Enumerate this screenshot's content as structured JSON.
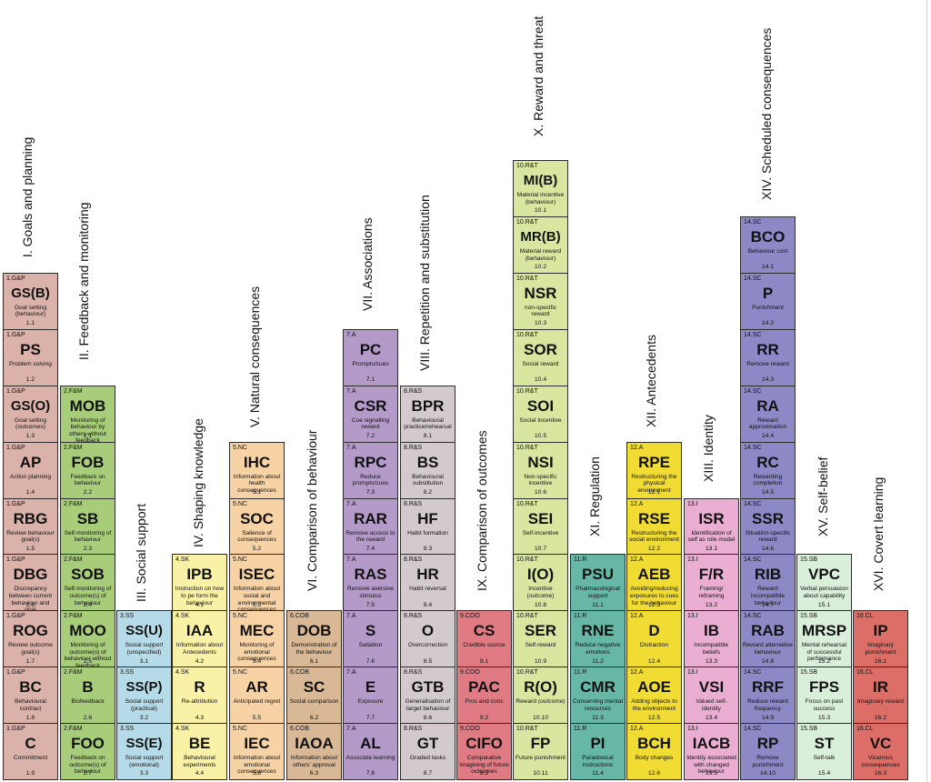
{
  "colors": {
    "goals": "#dbb2aa",
    "feedback": "#a7cd7a",
    "social": "#b6dbe8",
    "knowledge": "#f8f1a6",
    "natural": "#f7d2a4",
    "comparison": "#d9b895",
    "associations": "#b49ac8",
    "repetition": "#d3cacd",
    "outcomes": "#e07b83",
    "reward": "#d9e6a0",
    "regulation": "#66b7a6",
    "antecedents": "#f1dc34",
    "identity": "#eaaed2",
    "scheduled": "#8d89c6",
    "selfbelief": "#d9efd9",
    "covert": "#dd6e67"
  },
  "groups": [
    {
      "heading": "I. Goals and planning",
      "color_key": "goals",
      "items": [
        {
          "code": "1.G&P",
          "abbr": "GS(B)",
          "desc": "Goal setting (behaviour)",
          "num": "1.1"
        },
        {
          "code": "1.G&P",
          "abbr": "PS",
          "desc": "Problem solving",
          "num": "1.2"
        },
        {
          "code": "1.G&P",
          "abbr": "GS(O)",
          "desc": "Goal setting (outcomes)",
          "num": "1.3"
        },
        {
          "code": "1.G&P",
          "abbr": "AP",
          "desc": "Action planning",
          "num": "1.4"
        },
        {
          "code": "1.G&P",
          "abbr": "RBG",
          "desc": "Review behaviour goal(s)",
          "num": "1.5"
        },
        {
          "code": "1.G&P",
          "abbr": "DBG",
          "desc": "Discrepancy between current behaviour and goal",
          "num": "1.6"
        },
        {
          "code": "1.G&P",
          "abbr": "ROG",
          "desc": "Review outcome goal(s)",
          "num": "1.7"
        },
        {
          "code": "1.G&P",
          "abbr": "BC",
          "desc": "Behavioural contract",
          "num": "1.8"
        },
        {
          "code": "1.G&P",
          "abbr": "C",
          "desc": "Commitment",
          "num": "1.9"
        }
      ]
    },
    {
      "heading": "II. Feedback and monitoring",
      "color_key": "feedback",
      "items": [
        {
          "code": "2.F&M",
          "abbr": "MOB",
          "desc": "Monitoring of behaviour by others without feedback",
          "num": "2.1"
        },
        {
          "code": "2.F&M",
          "abbr": "FOB",
          "desc": "Feedback on behaviour",
          "num": "2.2"
        },
        {
          "code": "2.F&M",
          "abbr": "SB",
          "desc": "Self-monitoring of behaviour",
          "num": "2.3"
        },
        {
          "code": "2.F&M",
          "abbr": "SOB",
          "desc": "Self-monitoring of outcome(s) of behaviour",
          "num": "2.4"
        },
        {
          "code": "2.F&M",
          "abbr": "MOO",
          "desc": "Monitoring of outcome(s) of behaviour without feedback",
          "num": "2.5"
        },
        {
          "code": "2.F&M",
          "abbr": "B",
          "desc": "Biofeedback",
          "num": "2.6"
        },
        {
          "code": "2.F&M",
          "abbr": "FOO",
          "desc": "Feedback on outcome(s) of behaviour",
          "num": "2.7"
        }
      ]
    },
    {
      "heading": "III. Social support",
      "color_key": "social",
      "items": [
        {
          "code": "3.SS",
          "abbr": "SS(U)",
          "desc": "Social support (unspecified)",
          "num": "3.1"
        },
        {
          "code": "3.SS",
          "abbr": "SS(P)",
          "desc": "Social support (practical)",
          "num": "3.2"
        },
        {
          "code": "3.SS",
          "abbr": "SS(E)",
          "desc": "Social support (emotional)",
          "num": "3.3"
        }
      ]
    },
    {
      "heading": "IV. Shaping knowledge",
      "color_key": "knowledge",
      "items": [
        {
          "code": "4.SK",
          "abbr": "IPB",
          "desc": "Instruction on how to pe form the behaviour",
          "num": "4.1"
        },
        {
          "code": "4.SK",
          "abbr": "IAA",
          "desc": "Information about Antecedents",
          "num": "4.2"
        },
        {
          "code": "4.SK",
          "abbr": "R",
          "desc": "Re-attribution",
          "num": "4.3"
        },
        {
          "code": "4.SK",
          "abbr": "BE",
          "desc": "Behavioural experiments",
          "num": "4.4"
        }
      ]
    },
    {
      "heading": "V. Natural consequences",
      "color_key": "natural",
      "items": [
        {
          "code": "5.NC",
          "abbr": "IHC",
          "desc": "Information about health consequences",
          "num": "5.1"
        },
        {
          "code": "5.NC",
          "abbr": "SOC",
          "desc": "Salience of consequences",
          "num": "5.2"
        },
        {
          "code": "5.NC",
          "abbr": "ISEC",
          "desc": "Information about social and environmental consequences",
          "num": "5.3"
        },
        {
          "code": "5.NC",
          "abbr": "MEC",
          "desc": "Monitoring of emotional consequences",
          "num": "5.4"
        },
        {
          "code": "5.NC",
          "abbr": "AR",
          "desc": "Anticipated regret",
          "num": "5.5"
        },
        {
          "code": "5.NC",
          "abbr": "IEC",
          "desc": "Information about emotional consequences",
          "num": "5.6"
        }
      ]
    },
    {
      "heading": "VI. Comparison of behaviour",
      "color_key": "comparison",
      "items": [
        {
          "code": "6.COB",
          "abbr": "DOB",
          "desc": "Demonstration of the behaviour",
          "num": "6.1"
        },
        {
          "code": "6.COB",
          "abbr": "SC",
          "desc": "Social comparison",
          "num": "6.2"
        },
        {
          "code": "6.COB",
          "abbr": "IAOA",
          "desc": "Information about others' approval",
          "num": "6.3"
        }
      ]
    },
    {
      "heading": "VII. Associations",
      "color_key": "associations",
      "items": [
        {
          "code": "7.A",
          "abbr": "PC",
          "desc": "Prompts/cues",
          "num": "7.1"
        },
        {
          "code": "7.A",
          "abbr": "CSR",
          "desc": "Cue signalling reward",
          "num": "7.2"
        },
        {
          "code": "7.A",
          "abbr": "RPC",
          "desc": "Reduce prompts/cues",
          "num": "7.3"
        },
        {
          "code": "7.A",
          "abbr": "RAR",
          "desc": "Remove access to the reward",
          "num": "7.4"
        },
        {
          "code": "7.A",
          "abbr": "RAS",
          "desc": "Remove aversive stimulus",
          "num": "7.5"
        },
        {
          "code": "7.A",
          "abbr": "S",
          "desc": "Satiation",
          "num": "7.6"
        },
        {
          "code": "7.A",
          "abbr": "E",
          "desc": "Exposure",
          "num": "7.7"
        },
        {
          "code": "7.A",
          "abbr": "AL",
          "desc": "Associate learning",
          "num": "7.8"
        }
      ]
    },
    {
      "heading": "VIII. Repetition and substitution",
      "color_key": "repetition",
      "items": [
        {
          "code": "8.R&S",
          "abbr": "BPR",
          "desc": "Behavioural practice/rehearsal",
          "num": "8.1"
        },
        {
          "code": "8.R&S",
          "abbr": "BS",
          "desc": "Behavioural substitution",
          "num": "8.2"
        },
        {
          "code": "8.R&S",
          "abbr": "HF",
          "desc": "Habit formation",
          "num": "8.3"
        },
        {
          "code": "8.R&S",
          "abbr": "HR",
          "desc": "Habit reversal",
          "num": "8.4"
        },
        {
          "code": "8.R&S",
          "abbr": "O",
          "desc": "Overcorrection",
          "num": "8.5"
        },
        {
          "code": "8.R&S",
          "abbr": "GTB",
          "desc": "Generalisation of target behaviour",
          "num": "8.6"
        },
        {
          "code": "8.R&S",
          "abbr": "GT",
          "desc": "Graded tasks",
          "num": "8.7"
        }
      ]
    },
    {
      "heading": "IX. Comparison of outcomes",
      "color_key": "outcomes",
      "items": [
        {
          "code": "9.COO",
          "abbr": "CS",
          "desc": "Credible source",
          "num": "9.1"
        },
        {
          "code": "9.COO",
          "abbr": "PAC",
          "desc": "Pros and cons",
          "num": "9.2"
        },
        {
          "code": "9.COO",
          "abbr": "CIFO",
          "desc": "Comparative imagining of future outcomes",
          "num": "9.3"
        }
      ]
    },
    {
      "heading": "X. Reward and threat",
      "color_key": "reward",
      "items": [
        {
          "code": "10.R&T",
          "abbr": "MI(B)",
          "desc": "Material incentive (behaviour)",
          "num": "10.1"
        },
        {
          "code": "10.R&T",
          "abbr": "MR(B)",
          "desc": "Material reward (behaviour)",
          "num": "10.2"
        },
        {
          "code": "10.R&T",
          "abbr": "NSR",
          "desc": "non-specific reward",
          "num": "10.3"
        },
        {
          "code": "10.R&T",
          "abbr": "SOR",
          "desc": "Social reward",
          "num": "10.4"
        },
        {
          "code": "10.R&T",
          "abbr": "SOI",
          "desc": "Social Incentive",
          "num": "10.5"
        },
        {
          "code": "10.R&T",
          "abbr": "NSI",
          "desc": "Non-specific incentive",
          "num": "10.6"
        },
        {
          "code": "10.R&T",
          "abbr": "SEI",
          "desc": "Self-incentive",
          "num": "10.7"
        },
        {
          "code": "10.R&T",
          "abbr": "I(O)",
          "desc": "Incentive (outcome)",
          "num": "10.8"
        },
        {
          "code": "10.R&T",
          "abbr": "SER",
          "desc": "Self-reward",
          "num": "10.9"
        },
        {
          "code": "10.R&T",
          "abbr": "R(O)",
          "desc": "Reward (outcome)",
          "num": "10.10"
        },
        {
          "code": "10.R&T",
          "abbr": "FP",
          "desc": "Future punishment",
          "num": "10.11"
        }
      ]
    },
    {
      "heading": "XI. Regulation",
      "color_key": "regulation",
      "items": [
        {
          "code": "11.R",
          "abbr": "PSU",
          "desc": "Pharmacological support",
          "num": "11.1"
        },
        {
          "code": "11.R",
          "abbr": "RNE",
          "desc": "Reduce negative emotions",
          "num": "11.2"
        },
        {
          "code": "11.R",
          "abbr": "CMR",
          "desc": "Conserving mental resources",
          "num": "11.3"
        },
        {
          "code": "11.R",
          "abbr": "PI",
          "desc": "Paradoxical instructions",
          "num": "11.4"
        }
      ]
    },
    {
      "heading": "XII. Antecedents",
      "color_key": "antecedents",
      "items": [
        {
          "code": "12.A",
          "abbr": "RPE",
          "desc": "Restructuring the physical environment",
          "num": "12.1"
        },
        {
          "code": "12.A",
          "abbr": "RSE",
          "desc": "Restructuring the social environment",
          "num": "12.2"
        },
        {
          "code": "12.A",
          "abbr": "AEB",
          "desc": "Avoiding/reducing exposures to cues for the behaviour",
          "num": "12.3"
        },
        {
          "code": "12.A",
          "abbr": "D",
          "desc": "Distraction",
          "num": "12.4"
        },
        {
          "code": "12.A",
          "abbr": "AOE",
          "desc": "Adding objects to the environment",
          "num": "12.5"
        },
        {
          "code": "12.A",
          "abbr": "BCH",
          "desc": "Body changes",
          "num": "12.6"
        }
      ]
    },
    {
      "heading": "XIII. Identity",
      "color_key": "identity",
      "items": [
        {
          "code": "13.I",
          "abbr": "ISR",
          "desc": "Identification of self as role model",
          "num": "13.1"
        },
        {
          "code": "13.I",
          "abbr": "F/R",
          "desc": "Framing/ reframing",
          "num": "13.2"
        },
        {
          "code": "13.I",
          "abbr": "IB",
          "desc": "Incompatible beliefs",
          "num": "13.3"
        },
        {
          "code": "13.I",
          "abbr": "VSI",
          "desc": "Valued self-identity",
          "num": "13.4"
        },
        {
          "code": "13.I",
          "abbr": "IACB",
          "desc": "Identity associated with changed behaviour",
          "num": "13.5"
        }
      ]
    },
    {
      "heading": "XIV. Scheduled consequences",
      "color_key": "scheduled",
      "items": [
        {
          "code": "14.SC",
          "abbr": "BCO",
          "desc": "Behaviour cost",
          "num": "14.1"
        },
        {
          "code": "14.SC",
          "abbr": "P",
          "desc": "Punishment",
          "num": "14.2"
        },
        {
          "code": "14.SC",
          "abbr": "RR",
          "desc": "Remove reward",
          "num": "14.3"
        },
        {
          "code": "14.SC",
          "abbr": "RA",
          "desc": "Reward approximation",
          "num": "14.4"
        },
        {
          "code": "14.SC",
          "abbr": "RC",
          "desc": "Rewarding completion",
          "num": "14.5"
        },
        {
          "code": "14.SC",
          "abbr": "SSR",
          "desc": "Situation-specific reward",
          "num": "14.6"
        },
        {
          "code": "14.SC",
          "abbr": "RIB",
          "desc": "Reward incompatible behaviour",
          "num": "14.7"
        },
        {
          "code": "14.SC",
          "abbr": "RAB",
          "desc": "Reward alternative behaviour",
          "num": "14.8"
        },
        {
          "code": "14.SC",
          "abbr": "RRF",
          "desc": "Reduce reward frequency",
          "num": "14.9"
        },
        {
          "code": "14.SC",
          "abbr": "RP",
          "desc": "Remove punishment",
          "num": "14.10"
        }
      ]
    },
    {
      "heading": "XV. Self-belief",
      "color_key": "selfbelief",
      "items": [
        {
          "code": "15.SB",
          "abbr": "VPC",
          "desc": "Verbal persuasion about capability",
          "num": "15.1"
        },
        {
          "code": "15.SB",
          "abbr": "MRSP",
          "desc": "Mental rehearsal of successful performance",
          "num": "15.2"
        },
        {
          "code": "15.SB",
          "abbr": "FPS",
          "desc": "Focus on past success",
          "num": "15.3"
        },
        {
          "code": "15.SB",
          "abbr": "ST",
          "desc": "Self-talk",
          "num": "15.4"
        }
      ]
    },
    {
      "heading": "XVI. Covert learning",
      "color_key": "covert",
      "items": [
        {
          "code": "16.CL",
          "abbr": "IP",
          "desc": "Imaginary punishment",
          "num": "16.1"
        },
        {
          "code": "16.CL",
          "abbr": "IR",
          "desc": "Imaginary reward",
          "num": "16.2"
        },
        {
          "code": "16.CL",
          "abbr": "VC",
          "desc": "Vicarious consequences",
          "num": "16.3"
        }
      ]
    }
  ]
}
